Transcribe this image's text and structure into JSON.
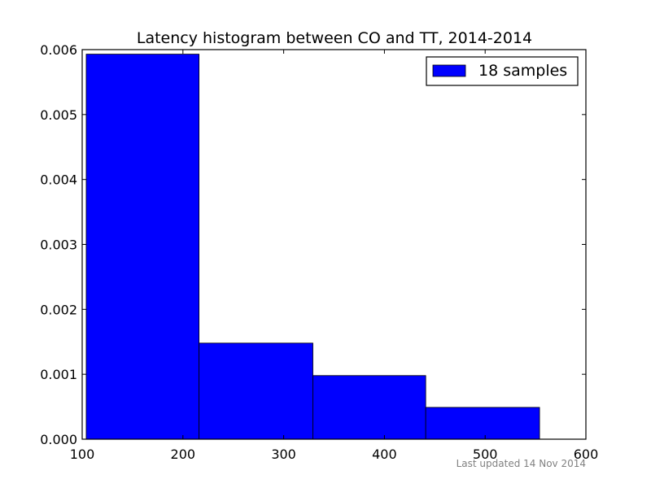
{
  "chart_data": {
    "type": "bar",
    "title": "Latency histogram between CO and TT, 2014-2014",
    "xlabel": "",
    "ylabel": "",
    "xlim": [
      100,
      600
    ],
    "ylim": [
      0,
      0.006
    ],
    "x_ticks": [
      100,
      200,
      300,
      400,
      500,
      600
    ],
    "x_tick_labels": [
      "100",
      "200",
      "300",
      "400",
      "500",
      "600"
    ],
    "y_ticks": [
      0,
      0.001,
      0.002,
      0.003,
      0.004,
      0.005,
      0.006
    ],
    "y_tick_labels": [
      "0.000",
      "0.001",
      "0.002",
      "0.003",
      "0.004",
      "0.005",
      "0.006"
    ],
    "bins": [
      {
        "x0": 104,
        "x1": 216,
        "value": 0.00593
      },
      {
        "x0": 216,
        "x1": 329,
        "value": 0.00148
      },
      {
        "x0": 329,
        "x1": 441,
        "value": 0.00098
      },
      {
        "x0": 441,
        "x1": 554,
        "value": 0.00049
      }
    ],
    "series": [
      {
        "name": "18 samples",
        "color": "#0000ff"
      }
    ],
    "legend_position": "top-right",
    "grid": false
  },
  "footnote": "Last updated 14 Nov 2014"
}
